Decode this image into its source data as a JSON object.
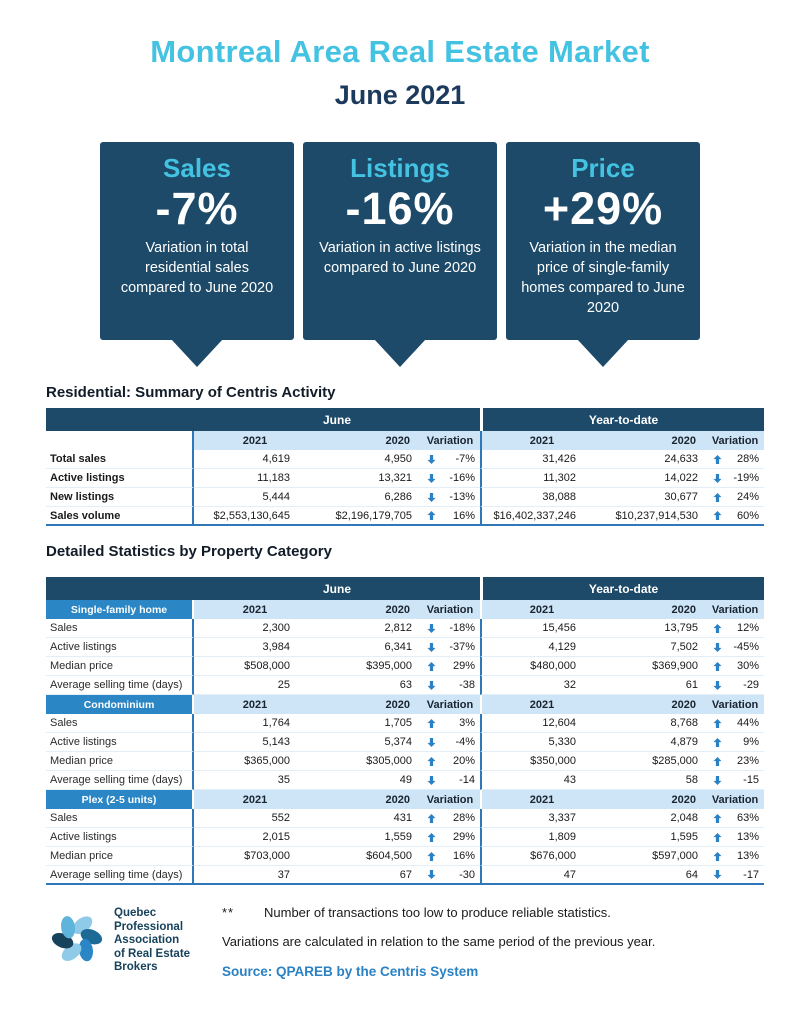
{
  "page": {
    "title": "Montreal Area Real Estate Market",
    "subtitle": "June 2021"
  },
  "colors": {
    "accent_cyan": "#44C2E2",
    "navy": "#1D4A68",
    "mid_blue": "#2A86C4",
    "light_blue": "#CDE5F6",
    "border_blue": "#2E77B8",
    "arrow_blue": "#2A81C4"
  },
  "callouts": [
    {
      "label": "Sales",
      "value": "-7%",
      "description": "Variation in total residential sales compared to June 2020"
    },
    {
      "label": "Listings",
      "value": "-16%",
      "description": "Variation in active listings compared to June 2020"
    },
    {
      "label": "Price",
      "value": "+29%",
      "description": "Variation in the median price of single-family homes compared to June 2020"
    }
  ],
  "summary_table": {
    "section_title": "Residential: Summary of Centris Activity",
    "group_headers": [
      "June",
      "Year-to-date"
    ],
    "column_headers": [
      "2021",
      "2020",
      "Variation"
    ],
    "rows": [
      {
        "label": "Total sales",
        "june": {
          "v2021": "4,619",
          "v2020": "4,950",
          "variation": "-7%",
          "direction": "down"
        },
        "ytd": {
          "v2021": "31,426",
          "v2020": "24,633",
          "variation": "28%",
          "direction": "up"
        }
      },
      {
        "label": "Active listings",
        "june": {
          "v2021": "11,183",
          "v2020": "13,321",
          "variation": "-16%",
          "direction": "down"
        },
        "ytd": {
          "v2021": "11,302",
          "v2020": "14,022",
          "variation": "-19%",
          "direction": "down"
        }
      },
      {
        "label": "New listings",
        "june": {
          "v2021": "5,444",
          "v2020": "6,286",
          "variation": "-13%",
          "direction": "down"
        },
        "ytd": {
          "v2021": "38,088",
          "v2020": "30,677",
          "variation": "24%",
          "direction": "up"
        }
      },
      {
        "label": "Sales volume",
        "june": {
          "v2021": "$2,553,130,645",
          "v2020": "$2,196,179,705",
          "variation": "16%",
          "direction": "up"
        },
        "ytd": {
          "v2021": "$16,402,337,246",
          "v2020": "$10,237,914,530",
          "variation": "60%",
          "direction": "up"
        }
      }
    ]
  },
  "detail_table": {
    "section_title": "Detailed Statistics by Property Category",
    "group_headers": [
      "June",
      "Year-to-date"
    ],
    "column_headers": [
      "2021",
      "2020",
      "Variation"
    ],
    "categories": [
      {
        "name": "Single-family home",
        "rows": [
          {
            "label": "Sales",
            "june": {
              "v2021": "2,300",
              "v2020": "2,812",
              "variation": "-18%",
              "direction": "down"
            },
            "ytd": {
              "v2021": "15,456",
              "v2020": "13,795",
              "variation": "12%",
              "direction": "up"
            }
          },
          {
            "label": "Active listings",
            "june": {
              "v2021": "3,984",
              "v2020": "6,341",
              "variation": "-37%",
              "direction": "down"
            },
            "ytd": {
              "v2021": "4,129",
              "v2020": "7,502",
              "variation": "-45%",
              "direction": "down"
            }
          },
          {
            "label": "Median price",
            "june": {
              "v2021": "$508,000",
              "v2020": "$395,000",
              "variation": "29%",
              "direction": "up"
            },
            "ytd": {
              "v2021": "$480,000",
              "v2020": "$369,900",
              "variation": "30%",
              "direction": "up"
            }
          },
          {
            "label": "Average selling time (days)",
            "june": {
              "v2021": "25",
              "v2020": "63",
              "variation": "-38",
              "direction": "down"
            },
            "ytd": {
              "v2021": "32",
              "v2020": "61",
              "variation": "-29",
              "direction": "down"
            }
          }
        ]
      },
      {
        "name": "Condominium",
        "rows": [
          {
            "label": "Sales",
            "june": {
              "v2021": "1,764",
              "v2020": "1,705",
              "variation": "3%",
              "direction": "up"
            },
            "ytd": {
              "v2021": "12,604",
              "v2020": "8,768",
              "variation": "44%",
              "direction": "up"
            }
          },
          {
            "label": "Active listings",
            "june": {
              "v2021": "5,143",
              "v2020": "5,374",
              "variation": "-4%",
              "direction": "down"
            },
            "ytd": {
              "v2021": "5,330",
              "v2020": "4,879",
              "variation": "9%",
              "direction": "up"
            }
          },
          {
            "label": "Median price",
            "june": {
              "v2021": "$365,000",
              "v2020": "$305,000",
              "variation": "20%",
              "direction": "up"
            },
            "ytd": {
              "v2021": "$350,000",
              "v2020": "$285,000",
              "variation": "23%",
              "direction": "up"
            }
          },
          {
            "label": "Average selling time (days)",
            "june": {
              "v2021": "35",
              "v2020": "49",
              "variation": "-14",
              "direction": "down"
            },
            "ytd": {
              "v2021": "43",
              "v2020": "58",
              "variation": "-15",
              "direction": "down"
            }
          }
        ]
      },
      {
        "name": "Plex (2-5 units)",
        "rows": [
          {
            "label": "Sales",
            "june": {
              "v2021": "552",
              "v2020": "431",
              "variation": "28%",
              "direction": "up"
            },
            "ytd": {
              "v2021": "3,337",
              "v2020": "2,048",
              "variation": "63%",
              "direction": "up"
            }
          },
          {
            "label": "Active listings",
            "june": {
              "v2021": "2,015",
              "v2020": "1,559",
              "variation": "29%",
              "direction": "up"
            },
            "ytd": {
              "v2021": "1,809",
              "v2020": "1,595",
              "variation": "13%",
              "direction": "up"
            }
          },
          {
            "label": "Median price",
            "june": {
              "v2021": "$703,000",
              "v2020": "$604,500",
              "variation": "16%",
              "direction": "up"
            },
            "ytd": {
              "v2021": "$676,000",
              "v2020": "$597,000",
              "variation": "13%",
              "direction": "up"
            }
          },
          {
            "label": "Average selling time (days)",
            "june": {
              "v2021": "37",
              "v2020": "67",
              "variation": "-30",
              "direction": "down"
            },
            "ytd": {
              "v2021": "47",
              "v2020": "64",
              "variation": "-17",
              "direction": "down"
            }
          }
        ]
      }
    ]
  },
  "footer": {
    "logo_lines": [
      "Quebec",
      "Professional",
      "Association",
      "of Real Estate",
      "Brokers"
    ],
    "note_marker": "**",
    "note1": "Number of transactions too low to produce reliable statistics.",
    "note2": "Variations are calculated in relation to the same period of the previous year.",
    "source": "Source: QPAREB by the Centris System"
  }
}
